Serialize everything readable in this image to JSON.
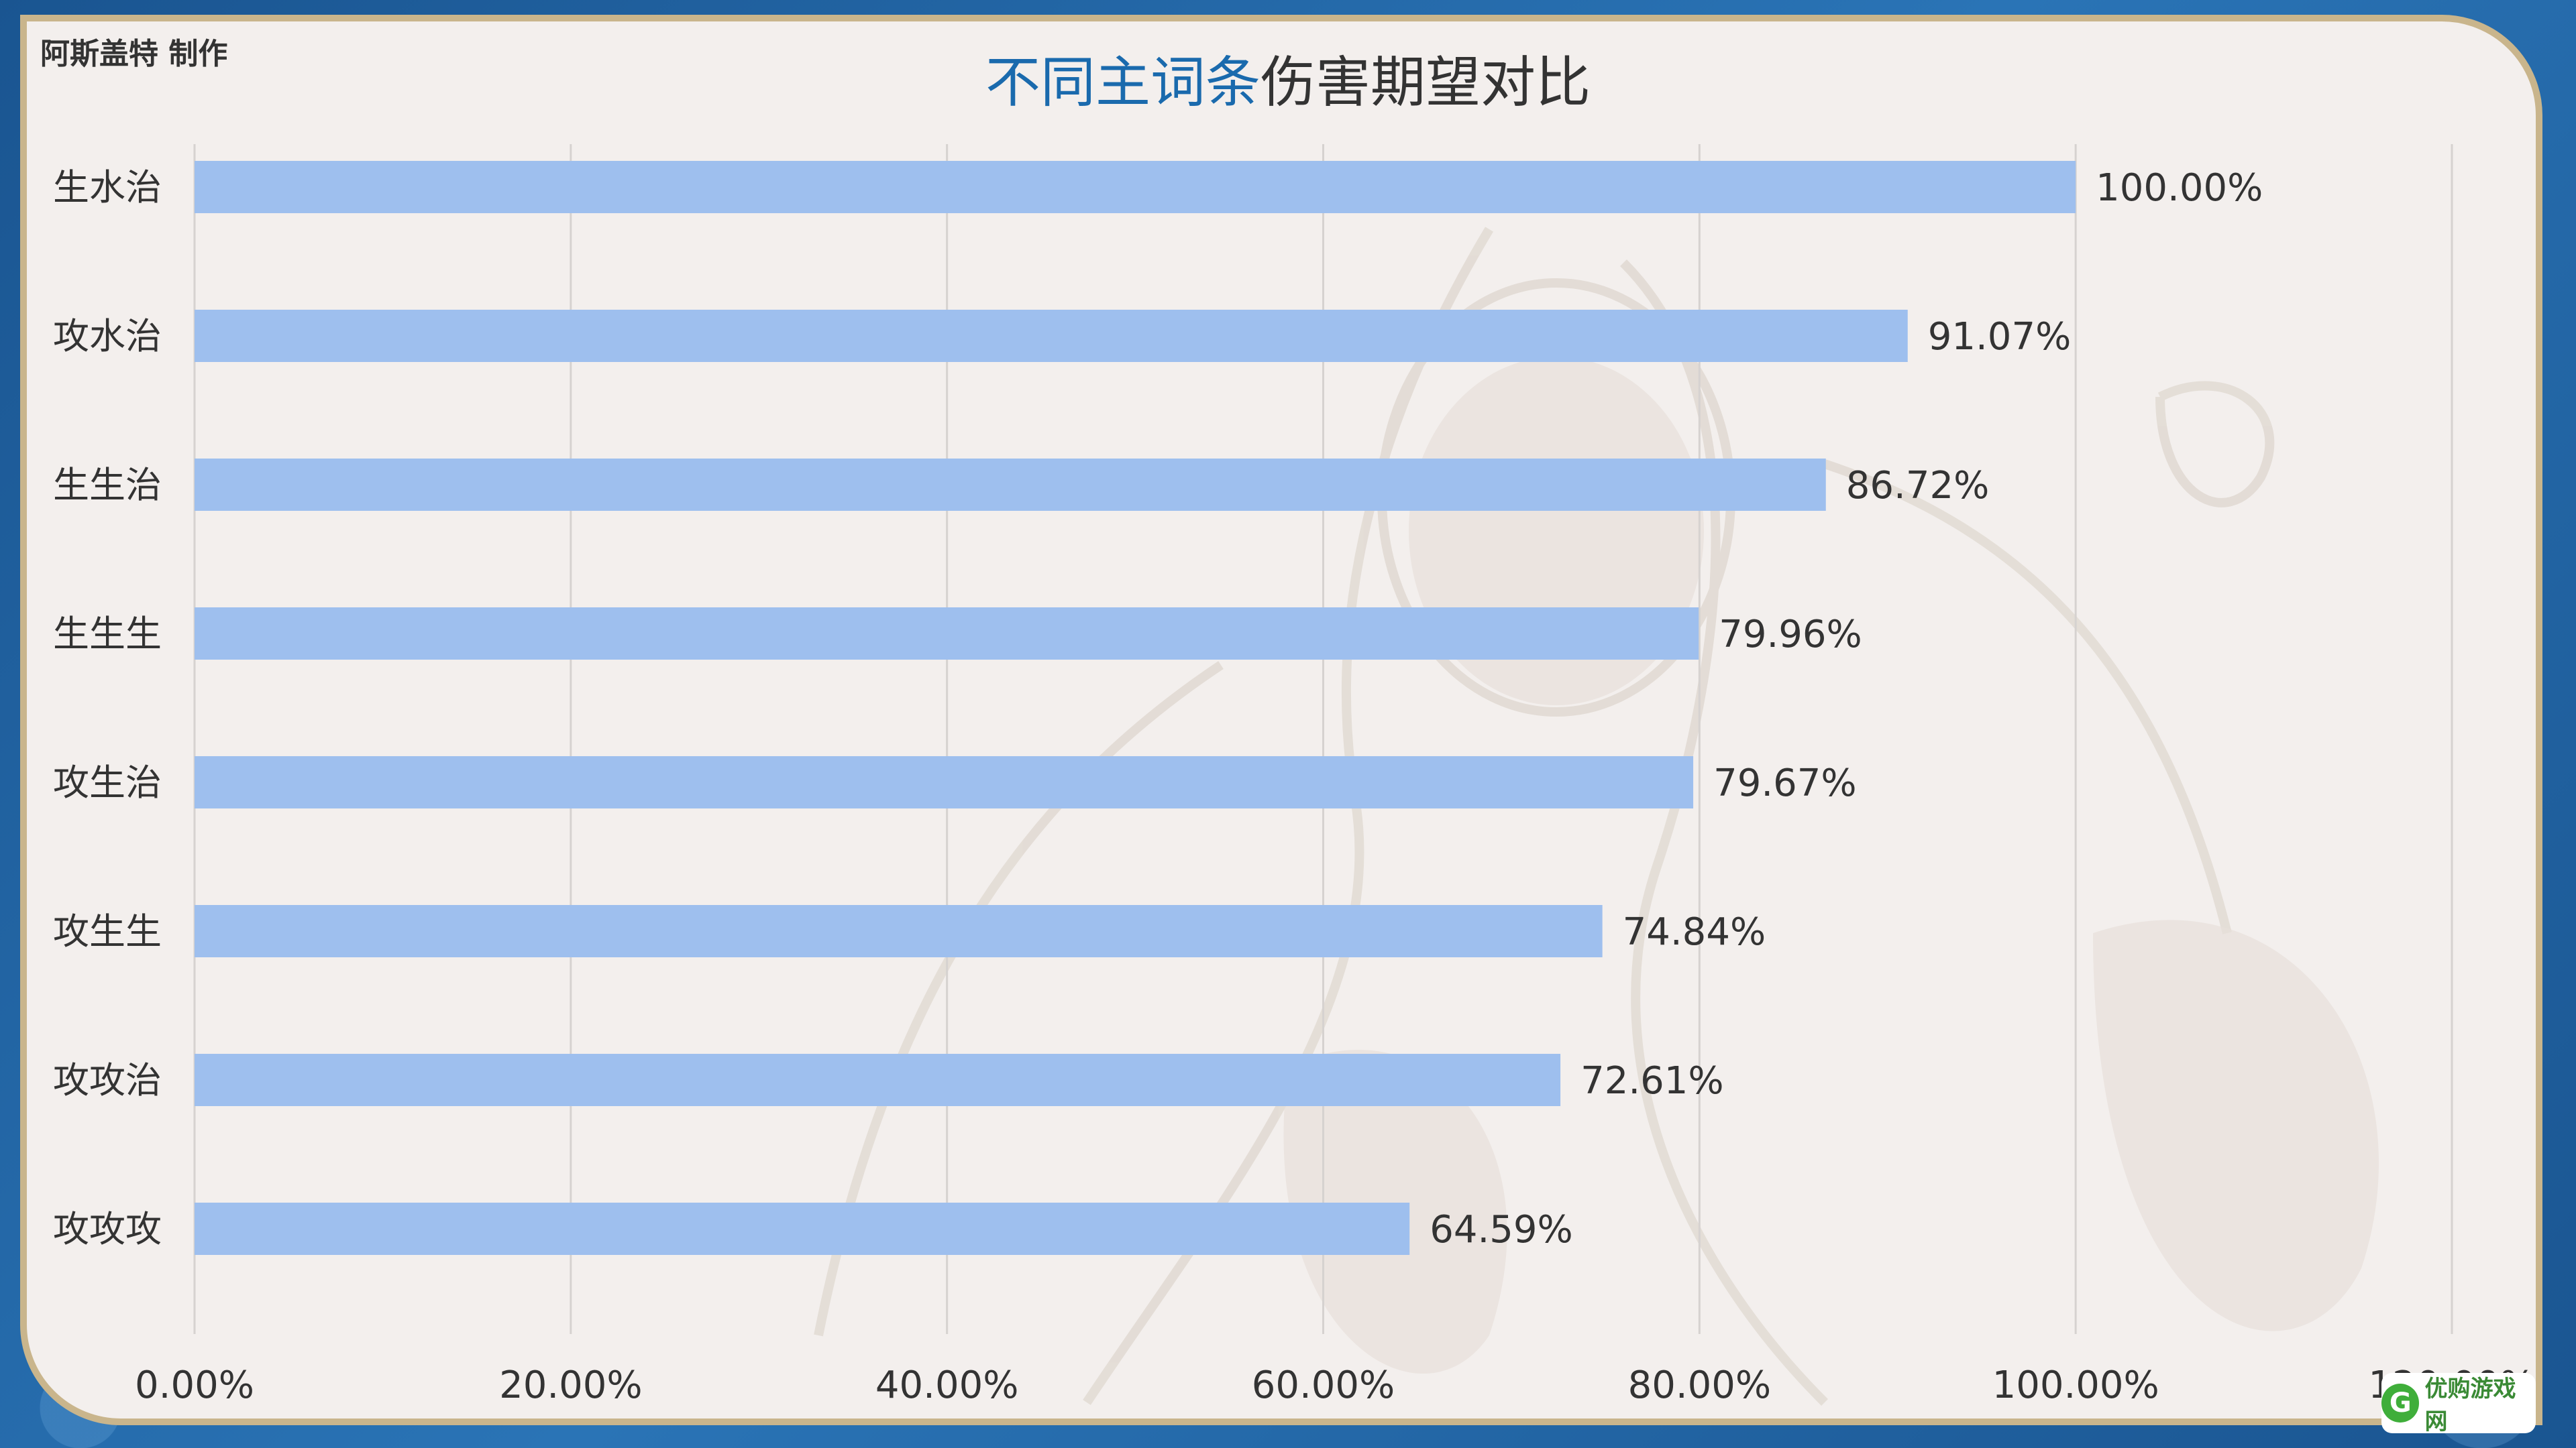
{
  "credit": "阿斯盖特 制作",
  "title_parts": {
    "blue": "不同主词条",
    "dark": "伤害期望对比"
  },
  "logo": {
    "mark": "G",
    "text": "优购游戏网"
  },
  "colors": {
    "bar": "#9ebfee",
    "grid": "#d6d2d0",
    "title_blue": "#1a6aad",
    "border": "#c9b58c"
  },
  "chart_data": {
    "type": "bar",
    "orientation": "horizontal",
    "title": "不同主词条伤害期望对比",
    "categories": [
      "生水治",
      "攻水治",
      "生生治",
      "生生生",
      "攻生治",
      "攻生生",
      "攻攻治",
      "攻攻攻"
    ],
    "values": [
      100.0,
      91.07,
      86.72,
      79.96,
      79.67,
      74.84,
      72.61,
      64.59
    ],
    "value_labels": [
      "100.00%",
      "91.07%",
      "86.72%",
      "79.96%",
      "79.67%",
      "74.84%",
      "72.61%",
      "64.59%"
    ],
    "xlim": [
      0,
      120
    ],
    "xticks": [
      0,
      20,
      40,
      60,
      80,
      100,
      120
    ],
    "xtick_labels": [
      "0.00%",
      "20.00%",
      "40.00%",
      "60.00%",
      "80.00%",
      "100.00%",
      "120.00%"
    ],
    "grid": true,
    "legend": "none"
  }
}
